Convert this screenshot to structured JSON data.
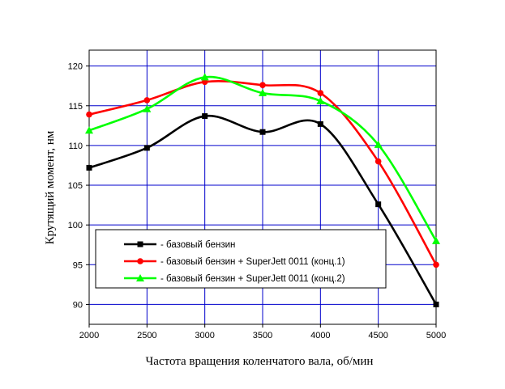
{
  "chart_data": {
    "type": "line",
    "title": "",
    "xlabel": "Частота вращения коленчатого вала, об/мин",
    "ylabel": "Крутящий момент, нм",
    "xlim": [
      2000,
      5000
    ],
    "ylim": [
      87.5,
      122
    ],
    "x_ticks": [
      2000,
      2500,
      3000,
      3500,
      4000,
      4500,
      5000
    ],
    "y_ticks": [
      90,
      95,
      100,
      105,
      110,
      115,
      120
    ],
    "grid": true,
    "legend_position": "bottom-left",
    "x": [
      2000,
      2500,
      3000,
      3500,
      4000,
      4500,
      5000
    ],
    "series": [
      {
        "name": "- базовый бензин",
        "values": [
          107.2,
          109.7,
          113.7,
          111.7,
          112.7,
          102.6,
          90.0
        ],
        "color": "#000000",
        "marker": "square"
      },
      {
        "name": "- базовый бензин + SuperJett 0011 (конц.1)",
        "values": [
          113.9,
          115.7,
          118.0,
          117.6,
          116.6,
          108.0,
          95.0
        ],
        "color": "#ff0000",
        "marker": "circle"
      },
      {
        "name": "- базовый бензин + SuperJett 0011 (конц.2)",
        "values": [
          111.9,
          114.6,
          118.6,
          116.6,
          115.6,
          110.1,
          98.0
        ],
        "color": "#00ff00",
        "marker": "triangle"
      }
    ]
  }
}
